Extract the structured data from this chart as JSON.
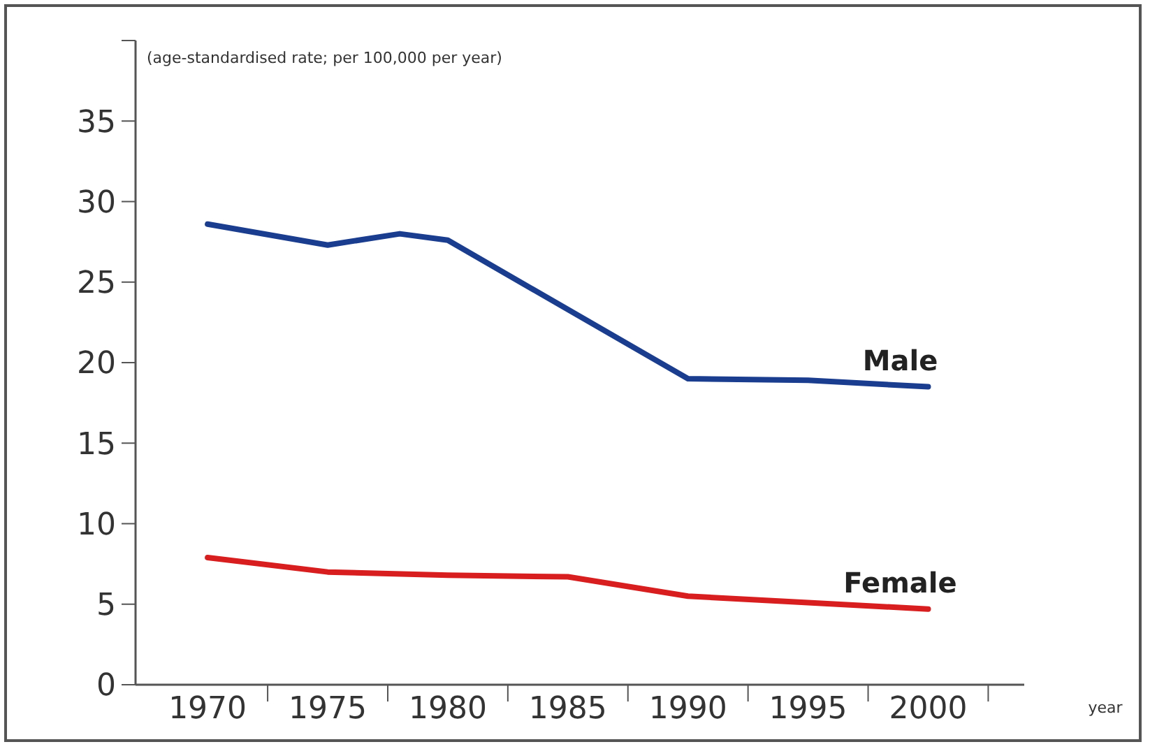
{
  "chart_data": {
    "type": "line",
    "ylabel": "(age-standardised rate; per 100,000 per year)",
    "xlabel": "year",
    "xlim": [
      1967,
      2004
    ],
    "xticks": [
      1970,
      1975,
      1980,
      1985,
      1990,
      1995,
      2000,
      {
        "value": 1972.5,
        "label": null
      },
      {
        "value": 1977.5,
        "label": null
      },
      {
        "value": 1982.5,
        "label": null
      },
      {
        "value": 1987.5,
        "label": null
      },
      {
        "value": 1992.5,
        "label": null
      },
      {
        "value": 1997.5,
        "label": null
      },
      {
        "value": 2002.5,
        "label": null
      }
    ],
    "ylim": [
      0,
      40
    ],
    "yticks": [
      0,
      5,
      10,
      15,
      20,
      25,
      30,
      35,
      {
        "value": 40,
        "label": null
      }
    ],
    "grid": false,
    "line_style": "solid",
    "marker": "none",
    "series": [
      {
        "name": "Male",
        "color": "#1a3d8f",
        "x": [
          1970,
          1975,
          1978,
          1980,
          1990,
          1995,
          2000
        ],
        "values": [
          28.6,
          27.3,
          28.0,
          27.6,
          19.0,
          18.9,
          18.5
        ]
      },
      {
        "name": "Female",
        "color": "#d81e1e",
        "x": [
          1970,
          1975,
          1980,
          1985,
          1990,
          1995,
          2000
        ],
        "values": [
          7.9,
          7.0,
          6.8,
          6.7,
          5.5,
          5.1,
          4.7
        ]
      }
    ]
  }
}
